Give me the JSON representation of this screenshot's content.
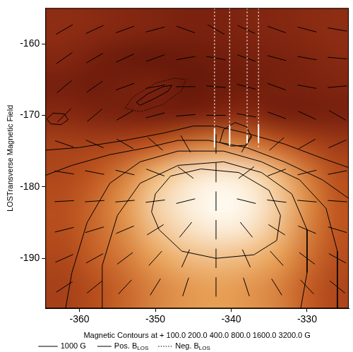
{
  "chart_data": {
    "type": "contour",
    "y_label": "LOSTransverse Magnetic Field",
    "x_label": "Magnetic Contours at + 100.0 200.0 400.0 800.0 1600.0 3200.0 G",
    "xlim": [
      -364.5,
      -324.5
    ],
    "xticks": [
      -360,
      -350,
      -340,
      -330
    ],
    "ylim": [
      -197,
      -155
    ],
    "yticks": [
      -190,
      -180,
      -170,
      -160
    ],
    "grid": false,
    "legend": "bottom",
    "heatmap": {
      "x": [
        -362,
        -358,
        -354,
        -350,
        -346,
        -342,
        -338,
        -334,
        -330,
        -326
      ],
      "y": [
        -158,
        -162,
        -166,
        -170,
        -174,
        -178,
        -182,
        -186,
        -190,
        -194
      ],
      "cells": [
        [
          700,
          650,
          600,
          550,
          500,
          500,
          550,
          600,
          650,
          700
        ],
        [
          600,
          450,
          350,
          300,
          350,
          400,
          450,
          500,
          550,
          650
        ],
        [
          450,
          400,
          450,
          500,
          300,
          350,
          400,
          450,
          500,
          550
        ],
        [
          650,
          550,
          500,
          450,
          500,
          600,
          700,
          500,
          450,
          500
        ],
        [
          1000,
          1000,
          1100,
          1300,
          1600,
          1800,
          1700,
          1400,
          1100,
          900
        ],
        [
          1100,
          1300,
          1700,
          2300,
          2800,
          3000,
          2900,
          2400,
          1700,
          1200
        ],
        [
          1200,
          1500,
          2000,
          2700,
          3100,
          3300,
          3200,
          2700,
          1900,
          1300
        ],
        [
          1200,
          1500,
          1900,
          2500,
          2900,
          3100,
          3000,
          2500,
          1800,
          1300
        ],
        [
          1100,
          1400,
          1700,
          2100,
          2400,
          2500,
          2400,
          2100,
          1600,
          1200
        ],
        [
          1000,
          1200,
          1500,
          1800,
          2000,
          2100,
          2000,
          1800,
          1400,
          1100
        ]
      ],
      "color_range": [
        0,
        3300
      ]
    },
    "vectors": {
      "x": [
        -362,
        -358,
        -354,
        -350,
        -346,
        -342,
        -338,
        -334,
        -330,
        -326
      ],
      "y": [
        -158,
        -162,
        -166,
        -170,
        -174,
        -178,
        -182,
        -186,
        -190,
        -194
      ],
      "angles": [
        [
          30,
          25,
          20,
          15,
          160,
          150,
          155,
          160,
          165,
          170
        ],
        [
          35,
          30,
          25,
          20,
          10,
          170,
          160,
          165,
          170,
          175
        ],
        [
          40,
          35,
          20,
          10,
          0,
          175,
          165,
          160,
          170,
          5
        ],
        [
          45,
          40,
          30,
          15,
          5,
          0,
          170,
          160,
          155,
          150
        ],
        [
          161,
          156,
          150,
          139,
          120,
          90,
          60,
          41,
          30,
          24
        ],
        [
          171,
          169,
          166,
          159,
          143,
          90,
          37,
          21,
          14,
          11
        ],
        [
          3,
          4,
          5,
          7,
          14,
          90,
          166,
          173,
          175,
          176
        ],
        [
          14,
          17,
          23,
          32,
          51,
          90,
          129,
          148,
          157,
          163
        ],
        [
          24,
          29,
          37,
          48,
          66,
          90,
          114,
          132,
          143,
          151
        ],
        [
          33,
          39,
          47,
          58,
          72,
          90,
          108,
          122,
          133,
          141
        ]
      ],
      "color": "#000000",
      "scale_label": "1000 G"
    },
    "contours": {
      "series": [
        {
          "name": "Pos. B",
          "subscript": "LOS",
          "line_style": "solid",
          "color": "#000000",
          "lines": [
            {
              "x": [
                -366,
                -360,
                -354,
                -349,
                -345,
                -342,
                -338,
                -333,
                -328,
                -324
              ],
              "y": [
                -175,
                -174.5,
                -173.5,
                -172.5,
                -171.5,
                -171.5,
                -172.5,
                -174,
                -176,
                -177.5
              ]
            },
            {
              "x": [
                -366,
                -361,
                -356,
                -351,
                -347,
                -343,
                -338,
                -333,
                -328,
                -324
              ],
              "y": [
                -179,
                -177,
                -175.5,
                -174.5,
                -173.5,
                -173.5,
                -174.5,
                -176.5,
                -179,
                -182
              ]
            },
            {
              "x": [
                -362,
                -361,
                -359,
                -356,
                -352,
                -347,
                -341,
                -336,
                -331,
                -327.5,
                -326,
                -326
              ],
              "y": [
                -198,
                -192,
                -185,
                -179.5,
                -176.5,
                -175,
                -175,
                -176.5,
                -179,
                -183,
                -189,
                -198
              ]
            },
            {
              "x": [
                -357,
                -357,
                -355,
                -352,
                -347,
                -341,
                -336,
                -332,
                -330,
                -330,
                -331
              ],
              "y": [
                -198,
                -191,
                -184,
                -179.5,
                -177,
                -176.5,
                -178,
                -181,
                -186,
                -192,
                -198
              ]
            },
            {
              "x": [
                -350,
                -348,
                -344,
                -339,
                -335,
                -333.5,
                -334,
                -337,
                -342,
                -346.5,
                -349.5,
                -350.5,
                -350
              ],
              "y": [
                -181,
                -178.5,
                -177.5,
                -178,
                -180.5,
                -184,
                -187.5,
                -189.5,
                -190,
                -189,
                -186,
                -183.5,
                -181
              ]
            },
            {
              "x": [
                -364.3,
                -363.5,
                -362,
                -361.5,
                -362.4,
                -363.8,
                -364.3
              ],
              "y": [
                -170.5,
                -169.7,
                -169.8,
                -170.6,
                -171.3,
                -171.2,
                -170.5
              ]
            },
            {
              "x": [
                -352.5,
                -351,
                -349,
                -347.8,
                -348.3,
                -350,
                -352,
                -352.5
              ],
              "y": [
                -168.2,
                -167,
                -166,
                -165.8,
                -166.6,
                -167.6,
                -168.6,
                -168.2
              ]
            },
            {
              "x": [
                -341.5,
                -341,
                -339.5,
                -338,
                -337.3,
                -338,
                -340,
                -341.5
              ],
              "y": [
                -173.8,
                -172,
                -171,
                -171.6,
                -173,
                -174.2,
                -174.3,
                -173.8
              ]
            }
          ]
        },
        {
          "name": "Neg. B",
          "subscript": "LOS",
          "line_style": "dotted",
          "color": "#000000",
          "lines": [
            {
              "x": [
                -354,
                -352,
                -349,
                -346.5,
                -346,
                -347.5,
                -350,
                -353,
                -354
              ],
              "y": [
                -169,
                -169.5,
                -168.5,
                -166.5,
                -165,
                -164.8,
                -165.5,
                -167.5,
                -169
              ]
            }
          ]
        }
      ]
    },
    "slits": {
      "color": "#ffffff",
      "lines": [
        {
          "x": -342.2,
          "y": [
            -155,
            -174.5
          ],
          "mark": [
            -171.8,
            -174.5
          ]
        },
        {
          "x": -340.2,
          "y": [
            -155,
            -174.5
          ],
          "mark": [
            -171.4,
            -174.2
          ]
        },
        {
          "x": -337.9,
          "y": [
            -155,
            -174.5
          ],
          "mark": [
            -172.8,
            -173.9
          ]
        },
        {
          "x": -336.4,
          "y": [
            -155,
            -174.5
          ],
          "mark": [
            -171.2,
            -173.8
          ]
        }
      ]
    }
  }
}
